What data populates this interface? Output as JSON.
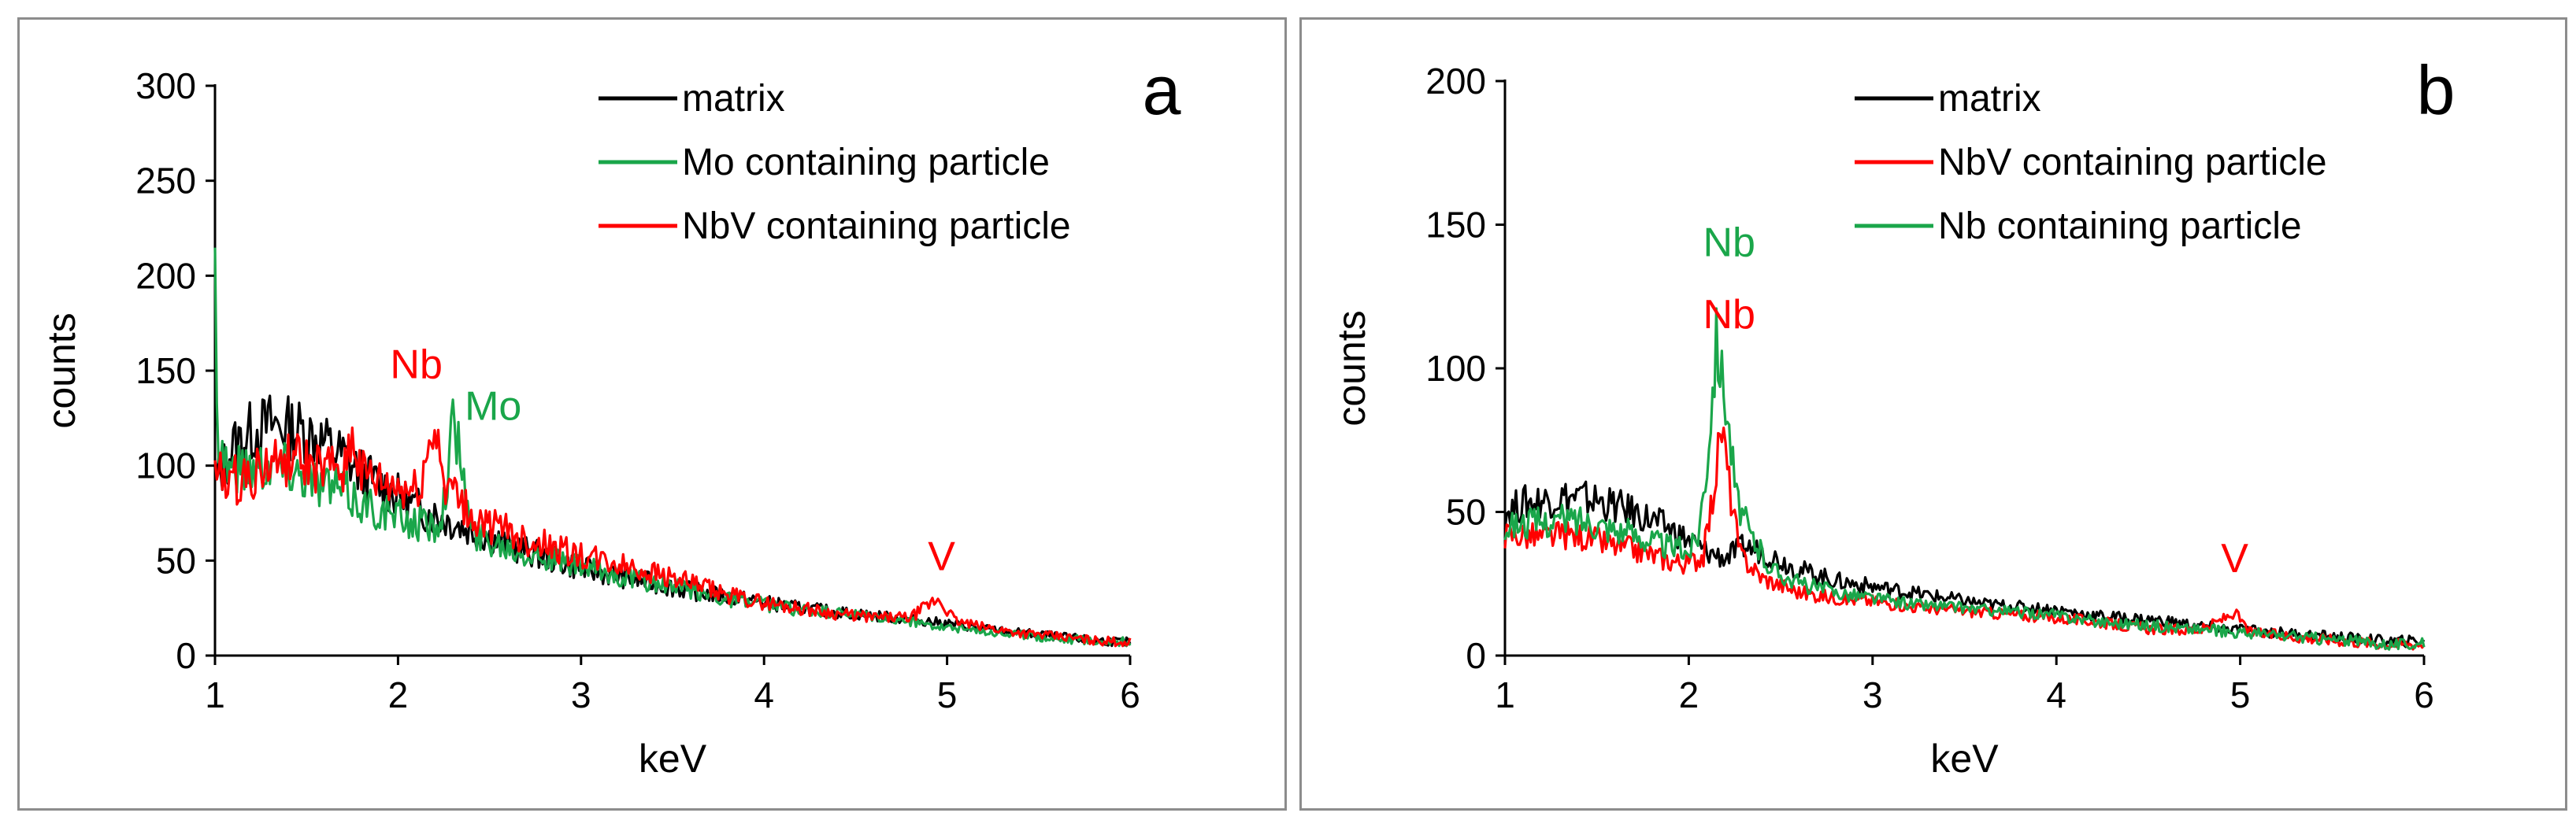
{
  "colors": {
    "matrix": "#000000",
    "red": "#ff0000",
    "green": "#1aa64a",
    "frame": "#8c8c8c"
  },
  "chart_data": [
    {
      "type": "line",
      "panel_label": "a",
      "xlabel": "keV",
      "ylabel": "counts",
      "xlim": [
        1,
        6
      ],
      "ylim": [
        0,
        300
      ],
      "x_ticks": [
        "1",
        "2",
        "3",
        "4",
        "5",
        "6"
      ],
      "y_ticks": [
        "0",
        "50",
        "100",
        "150",
        "200",
        "250",
        "300"
      ],
      "legend_position": "top-right",
      "series": [
        {
          "name": "matrix",
          "color": "#000000",
          "points": [
            [
              1.0,
              90
            ],
            [
              1.1,
              110
            ],
            [
              1.2,
              118
            ],
            [
              1.3,
              122
            ],
            [
              1.4,
              120
            ],
            [
              1.5,
              118
            ],
            [
              1.6,
              112
            ],
            [
              1.7,
              105
            ],
            [
              1.8,
              96
            ],
            [
              1.9,
              90
            ],
            [
              2.0,
              84
            ],
            [
              2.1,
              78
            ],
            [
              2.2,
              74
            ],
            [
              2.4,
              66
            ],
            [
              2.6,
              58
            ],
            [
              2.8,
              52
            ],
            [
              3.0,
              46
            ],
            [
              3.2,
              42
            ],
            [
              3.4,
              38
            ],
            [
              3.6,
              34
            ],
            [
              3.8,
              31
            ],
            [
              4.0,
              28
            ],
            [
              4.2,
              25
            ],
            [
              4.4,
              23
            ],
            [
              4.6,
              21
            ],
            [
              4.8,
              19
            ],
            [
              5.0,
              17
            ],
            [
              5.2,
              14
            ],
            [
              5.4,
              12
            ],
            [
              5.6,
              10
            ],
            [
              5.8,
              8
            ],
            [
              6.0,
              7
            ]
          ]
        },
        {
          "name": "Mo containing particle",
          "color": "#1aa64a",
          "points": [
            [
              1.0,
              200
            ],
            [
              1.02,
              110
            ],
            [
              1.1,
              98
            ],
            [
              1.2,
              100
            ],
            [
              1.3,
              102
            ],
            [
              1.4,
              100
            ],
            [
              1.5,
              95
            ],
            [
              1.6,
              90
            ],
            [
              1.7,
              86
            ],
            [
              1.8,
              80
            ],
            [
              1.9,
              76
            ],
            [
              2.0,
              72
            ],
            [
              2.1,
              70
            ],
            [
              2.2,
              68
            ],
            [
              2.25,
              80
            ],
            [
              2.3,
              122
            ],
            [
              2.35,
              100
            ],
            [
              2.4,
              64
            ],
            [
              2.6,
              58
            ],
            [
              2.8,
              52
            ],
            [
              3.0,
              46
            ],
            [
              3.2,
              42
            ],
            [
              3.4,
              38
            ],
            [
              3.6,
              34
            ],
            [
              3.8,
              30
            ],
            [
              4.0,
              27
            ],
            [
              4.2,
              24
            ],
            [
              4.4,
              22
            ],
            [
              4.6,
              20
            ],
            [
              4.8,
              18
            ],
            [
              5.0,
              15
            ],
            [
              5.2,
              13
            ],
            [
              5.4,
              11
            ],
            [
              5.6,
              9
            ],
            [
              5.8,
              8
            ],
            [
              6.0,
              7
            ]
          ]
        },
        {
          "name": "NbV containing particle",
          "color": "#ff0000",
          "points": [
            [
              1.0,
              95
            ],
            [
              1.1,
              92
            ],
            [
              1.2,
              95
            ],
            [
              1.3,
              100
            ],
            [
              1.4,
              104
            ],
            [
              1.5,
              100
            ],
            [
              1.6,
              96
            ],
            [
              1.7,
              100
            ],
            [
              1.76,
              115
            ],
            [
              1.8,
              95
            ],
            [
              1.9,
              90
            ],
            [
              2.0,
              88
            ],
            [
              2.1,
              86
            ],
            [
              2.15,
              100
            ],
            [
              2.2,
              122
            ],
            [
              2.25,
              95
            ],
            [
              2.3,
              86
            ],
            [
              2.4,
              72
            ],
            [
              2.6,
              65
            ],
            [
              2.8,
              58
            ],
            [
              3.0,
              52
            ],
            [
              3.2,
              48
            ],
            [
              3.4,
              44
            ],
            [
              3.6,
              38
            ],
            [
              3.8,
              32
            ],
            [
              4.0,
              28
            ],
            [
              4.2,
              25
            ],
            [
              4.4,
              22
            ],
            [
              4.6,
              20
            ],
            [
              4.8,
              20
            ],
            [
              4.95,
              30
            ],
            [
              5.05,
              18
            ],
            [
              5.2,
              15
            ],
            [
              5.4,
              12
            ],
            [
              5.6,
              10
            ],
            [
              5.8,
              8
            ],
            [
              6.0,
              7
            ]
          ]
        }
      ],
      "annotations": [
        {
          "text": "Nb",
          "color": "#ff0000",
          "x": 2.1,
          "y": 146
        },
        {
          "text": "Mo",
          "color": "#1aa64a",
          "x": 2.52,
          "y": 124
        },
        {
          "text": "V",
          "color": "#ff0000",
          "x": 4.97,
          "y": 45
        }
      ]
    },
    {
      "type": "line",
      "panel_label": "b",
      "xlabel": "keV",
      "ylabel": "counts",
      "xlim": [
        1,
        6
      ],
      "ylim": [
        0,
        200
      ],
      "x_ticks": [
        "1",
        "2",
        "3",
        "4",
        "5",
        "6"
      ],
      "y_ticks": [
        "0",
        "50",
        "100",
        "150",
        "200"
      ],
      "legend_position": "top-right",
      "series": [
        {
          "name": "matrix",
          "color": "#000000",
          "points": [
            [
              1.0,
              50
            ],
            [
              1.1,
              53
            ],
            [
              1.2,
              54
            ],
            [
              1.3,
              55
            ],
            [
              1.4,
              55
            ],
            [
              1.5,
              54
            ],
            [
              1.6,
              52
            ],
            [
              1.7,
              50
            ],
            [
              1.8,
              47
            ],
            [
              1.9,
              44
            ],
            [
              2.0,
              40
            ],
            [
              2.1,
              36
            ],
            [
              2.2,
              34
            ],
            [
              2.3,
              38
            ],
            [
              2.4,
              36
            ],
            [
              2.6,
              30
            ],
            [
              2.8,
              26
            ],
            [
              3.0,
              24
            ],
            [
              3.2,
              22
            ],
            [
              3.4,
              20
            ],
            [
              3.6,
              18
            ],
            [
              3.8,
              17
            ],
            [
              4.0,
              16
            ],
            [
              4.2,
              14
            ],
            [
              4.4,
              13
            ],
            [
              4.6,
              12
            ],
            [
              4.8,
              10
            ],
            [
              5.0,
              9
            ],
            [
              5.2,
              8
            ],
            [
              5.4,
              7
            ],
            [
              5.6,
              6
            ],
            [
              5.8,
              5
            ],
            [
              6.0,
              5
            ]
          ]
        },
        {
          "name": "NbV containing particle",
          "color": "#ff0000",
          "points": [
            [
              1.0,
              42
            ],
            [
              1.1,
              42
            ],
            [
              1.2,
              41
            ],
            [
              1.3,
              42
            ],
            [
              1.4,
              42
            ],
            [
              1.5,
              40
            ],
            [
              1.6,
              38
            ],
            [
              1.7,
              37
            ],
            [
              1.8,
              35
            ],
            [
              1.9,
              33
            ],
            [
              2.0,
              32
            ],
            [
              2.08,
              35
            ],
            [
              2.13,
              55
            ],
            [
              2.18,
              80
            ],
            [
              2.23,
              55
            ],
            [
              2.28,
              35
            ],
            [
              2.4,
              27
            ],
            [
              2.6,
              22
            ],
            [
              2.8,
              20
            ],
            [
              3.0,
              19
            ],
            [
              3.2,
              17
            ],
            [
              3.4,
              16
            ],
            [
              3.6,
              15
            ],
            [
              3.8,
              14
            ],
            [
              4.0,
              13
            ],
            [
              4.2,
              12
            ],
            [
              4.4,
              10
            ],
            [
              4.6,
              9
            ],
            [
              4.8,
              9
            ],
            [
              4.97,
              15
            ],
            [
              5.05,
              8
            ],
            [
              5.2,
              7
            ],
            [
              5.4,
              6
            ],
            [
              5.6,
              5
            ],
            [
              5.8,
              4
            ],
            [
              6.0,
              4
            ]
          ]
        },
        {
          "name": "Nb containing particle",
          "color": "#1aa64a",
          "points": [
            [
              1.0,
              45
            ],
            [
              1.1,
              46
            ],
            [
              1.2,
              46
            ],
            [
              1.3,
              47
            ],
            [
              1.4,
              47
            ],
            [
              1.5,
              46
            ],
            [
              1.6,
              44
            ],
            [
              1.7,
              42
            ],
            [
              1.8,
              40
            ],
            [
              1.9,
              38
            ],
            [
              2.0,
              36
            ],
            [
              2.05,
              42
            ],
            [
              2.1,
              68
            ],
            [
              2.15,
              110
            ],
            [
              2.2,
              90
            ],
            [
              2.26,
              55
            ],
            [
              2.35,
              40
            ],
            [
              2.45,
              30
            ],
            [
              2.6,
              25
            ],
            [
              2.8,
              22
            ],
            [
              3.0,
              20
            ],
            [
              3.2,
              18
            ],
            [
              3.4,
              17
            ],
            [
              3.6,
              16
            ],
            [
              3.8,
              15
            ],
            [
              4.0,
              14
            ],
            [
              4.2,
              12
            ],
            [
              4.4,
              11
            ],
            [
              4.6,
              10
            ],
            [
              4.8,
              9
            ],
            [
              5.0,
              8
            ],
            [
              5.2,
              7
            ],
            [
              5.4,
              6
            ],
            [
              5.6,
              5
            ],
            [
              5.8,
              4
            ],
            [
              6.0,
              4
            ]
          ]
        }
      ],
      "annotations": [
        {
          "text": "Nb",
          "color": "#1aa64a",
          "x": 2.22,
          "y": 139
        },
        {
          "text": "Nb",
          "color": "#ff0000",
          "x": 2.22,
          "y": 114
        },
        {
          "text": "V",
          "color": "#ff0000",
          "x": 4.97,
          "y": 29
        }
      ]
    }
  ]
}
